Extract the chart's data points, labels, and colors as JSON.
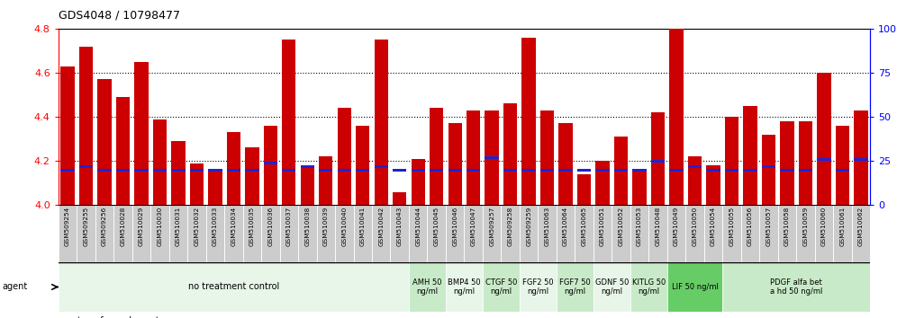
{
  "title": "GDS4048 / 10798477",
  "bar_color": "#cc0000",
  "percentile_color": "#2222cc",
  "ylim_left": [
    4.0,
    4.8
  ],
  "ylim_right": [
    0,
    100
  ],
  "yticks_left": [
    4.0,
    4.2,
    4.4,
    4.6,
    4.8
  ],
  "yticks_right": [
    0,
    25,
    50,
    75,
    100
  ],
  "bar_width": 0.75,
  "categories": [
    "GSM509254",
    "GSM509255",
    "GSM509256",
    "GSM510028",
    "GSM510029",
    "GSM510030",
    "GSM510031",
    "GSM510032",
    "GSM510033",
    "GSM510034",
    "GSM510035",
    "GSM510036",
    "GSM510037",
    "GSM510038",
    "GSM510039",
    "GSM510040",
    "GSM510041",
    "GSM510042",
    "GSM510043",
    "GSM510044",
    "GSM510045",
    "GSM510046",
    "GSM510047",
    "GSM509257",
    "GSM509258",
    "GSM509259",
    "GSM510063",
    "GSM510064",
    "GSM510065",
    "GSM510051",
    "GSM510052",
    "GSM510053",
    "GSM510048",
    "GSM510049",
    "GSM510050",
    "GSM510054",
    "GSM510055",
    "GSM510056",
    "GSM510057",
    "GSM510058",
    "GSM510059",
    "GSM510060",
    "GSM510061",
    "GSM510062"
  ],
  "red_values": [
    4.63,
    4.72,
    4.57,
    4.49,
    4.65,
    4.39,
    4.29,
    4.19,
    4.16,
    4.33,
    4.26,
    4.36,
    4.75,
    4.18,
    4.22,
    4.44,
    4.36,
    4.75,
    4.06,
    4.21,
    4.44,
    4.37,
    4.43,
    4.43,
    4.46,
    4.76,
    4.43,
    4.37,
    4.14,
    4.2,
    4.31,
    4.15,
    4.42,
    4.8,
    4.22,
    4.18,
    4.4,
    4.45,
    4.32,
    4.38,
    4.38,
    4.6,
    4.36,
    4.43
  ],
  "blue_pct": [
    20,
    22,
    20,
    20,
    20,
    20,
    20,
    20,
    20,
    20,
    20,
    24,
    20,
    22,
    20,
    20,
    20,
    22,
    20,
    20,
    20,
    20,
    20,
    27,
    20,
    20,
    20,
    20,
    20,
    20,
    20,
    20,
    25,
    20,
    22,
    20,
    20,
    20,
    22,
    20,
    20,
    26,
    20,
    26
  ],
  "agent_groups": [
    {
      "label": "no treatment control",
      "start": 0,
      "end": 19,
      "color": "#e8f5e9",
      "text_size": 7
    },
    {
      "label": "AMH 50\nng/ml",
      "start": 19,
      "end": 21,
      "color": "#c8eac8",
      "text_size": 6
    },
    {
      "label": "BMP4 50\nng/ml",
      "start": 21,
      "end": 23,
      "color": "#e8f5e9",
      "text_size": 6
    },
    {
      "label": "CTGF 50\nng/ml",
      "start": 23,
      "end": 25,
      "color": "#c8eac8",
      "text_size": 6
    },
    {
      "label": "FGF2 50\nng/ml",
      "start": 25,
      "end": 27,
      "color": "#e8f5e9",
      "text_size": 6
    },
    {
      "label": "FGF7 50\nng/ml",
      "start": 27,
      "end": 29,
      "color": "#c8eac8",
      "text_size": 6
    },
    {
      "label": "GDNF 50\nng/ml",
      "start": 29,
      "end": 31,
      "color": "#e8f5e9",
      "text_size": 6
    },
    {
      "label": "KITLG 50\nng/ml",
      "start": 31,
      "end": 33,
      "color": "#c8eac8",
      "text_size": 6
    },
    {
      "label": "LIF 50 ng/ml",
      "start": 33,
      "end": 36,
      "color": "#66cc66",
      "text_size": 6
    },
    {
      "label": "PDGF alfa bet\na hd 50 ng/ml",
      "start": 36,
      "end": 44,
      "color": "#c8eac8",
      "text_size": 6
    }
  ],
  "grid_lines": [
    4.2,
    4.4,
    4.6
  ],
  "tick_bg": "#cccccc"
}
